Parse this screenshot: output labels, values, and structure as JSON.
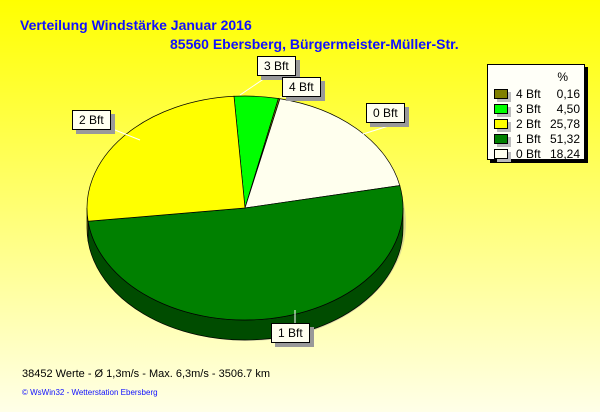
{
  "chart_data": {
    "type": "pie",
    "title": "Verteilung Windstärke  Januar 2016",
    "subtitle": "85560 Ebersberg, Bürgermeister-Müller-Str.",
    "legend_header": "%",
    "legend_placement": "right",
    "slices": [
      {
        "label": "4 Bft",
        "value": 0.16,
        "value_text": "0,16",
        "color": "#808000"
      },
      {
        "label": "3 Bft",
        "value": 4.5,
        "value_text": "4,50",
        "color": "#00ff00"
      },
      {
        "label": "2 Bft",
        "value": 25.78,
        "value_text": "25,78",
        "color": "#ffff00"
      },
      {
        "label": "1 Bft",
        "value": 51.32,
        "value_text": "51,32",
        "color": "#008000"
      },
      {
        "label": "0 Bft",
        "value": 18.24,
        "value_text": "18,24",
        "color": "#ffffee"
      }
    ]
  },
  "footer": {
    "stats": "38452 Werte   -   Ø 1,3m/s  -  Max. 6,3m/s   -   3506.7 km",
    "credit": "© WsWin32   -   Wetterstation Ebersberg"
  }
}
